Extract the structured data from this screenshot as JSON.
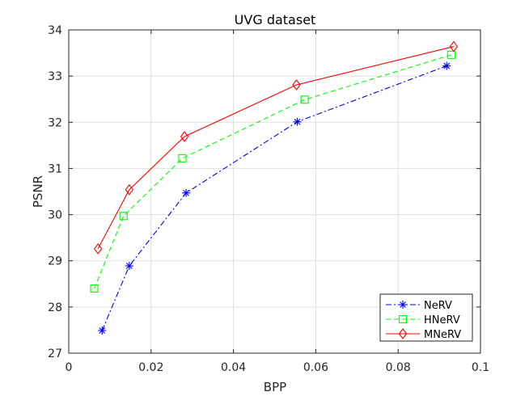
{
  "chart_data": {
    "type": "line",
    "title": "UVG dataset",
    "xlabel": "BPP",
    "ylabel": "PSNR",
    "xlim": [
      0,
      0.1
    ],
    "ylim": [
      27,
      34
    ],
    "xticks": [
      "0",
      "0.02",
      "0.04",
      "0.06",
      "0.08",
      "0.1"
    ],
    "yticks": [
      "27",
      "28",
      "29",
      "30",
      "31",
      "32",
      "33",
      "34"
    ],
    "grid": true,
    "legend_position": "bottom-right",
    "series": [
      {
        "name": "NeRV",
        "color": "#0000ff",
        "line_style": "dash-dot",
        "marker": "asterisk",
        "x": [
          0.0081,
          0.0147,
          0.0285,
          0.0555,
          0.0918
        ],
        "y": [
          27.49,
          28.89,
          30.47,
          32.01,
          33.22
        ]
      },
      {
        "name": "HNeRV",
        "color": "#00ff00",
        "line_style": "dashed",
        "marker": "square",
        "x": [
          0.0062,
          0.0133,
          0.0276,
          0.0573,
          0.0929
        ],
        "y": [
          28.4,
          29.97,
          31.22,
          32.49,
          33.46
        ]
      },
      {
        "name": "MNeRV",
        "color": "#ff0000",
        "line_style": "solid",
        "marker": "diamond",
        "x": [
          0.0071,
          0.0147,
          0.0281,
          0.0553,
          0.0935
        ],
        "y": [
          29.26,
          30.54,
          31.69,
          32.81,
          33.64
        ]
      }
    ]
  }
}
